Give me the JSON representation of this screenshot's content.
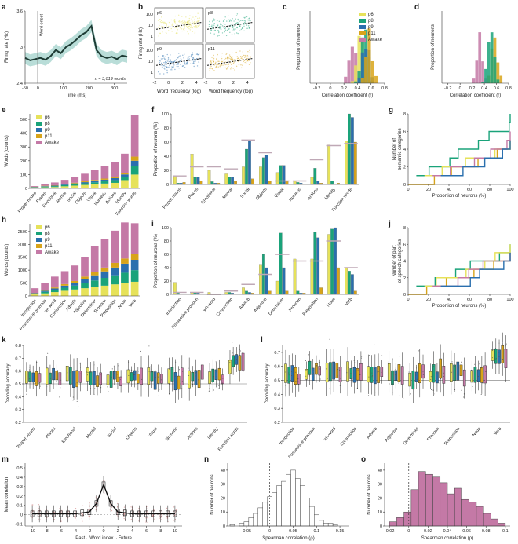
{
  "colors": {
    "p6": "#e6e25a",
    "p8": "#1aa37a",
    "p9": "#2a6fae",
    "p11": "#d8a41a",
    "awake": "#c479a6",
    "trace": "#1d3b34",
    "band": "#a8d4ce"
  },
  "chart_data": [
    {
      "id": "a",
      "type": "line",
      "panel_label": "a",
      "ylabel": "Firing rate (Hz)",
      "xlabel": "Time (ms)",
      "xlim": [
        -50,
        350
      ],
      "ylim": [
        2.4,
        3.6
      ],
      "xticks": [
        -50,
        0,
        100,
        200,
        300
      ],
      "yticks": [
        2.4,
        3.0,
        3.6
      ],
      "annotations": {
        "onset": "Word onset",
        "n": "n = 3,019 words"
      },
      "x": [
        -50,
        -30,
        -10,
        10,
        30,
        50,
        70,
        90,
        110,
        130,
        150,
        170,
        190,
        210,
        230,
        250,
        270,
        290,
        310,
        330,
        350
      ],
      "y": [
        2.82,
        2.78,
        2.8,
        2.82,
        2.79,
        2.85,
        2.95,
        2.9,
        3.0,
        3.05,
        3.12,
        3.2,
        3.25,
        3.35,
        2.95,
        2.85,
        2.82,
        2.84,
        2.8,
        2.86,
        2.84
      ]
    },
    {
      "id": "b",
      "type": "scatter",
      "panel_label": "b",
      "ylabel": "Firing rate (Hz)",
      "xlabel": "Word frequency (log)",
      "subplots": [
        "p6",
        "p8",
        "p9",
        "p11"
      ],
      "xticks": [
        -2,
        0,
        2,
        4
      ],
      "yticks_labels": [
        "1",
        "10",
        "100"
      ]
    },
    {
      "id": "c",
      "type": "bar",
      "panel_label": "c",
      "ylabel": "Proportion of neurons",
      "xlabel": "Correlation coefficient (r)",
      "xticks": [
        -0.2,
        0,
        0.2,
        0.4,
        0.6,
        0.8
      ],
      "legend": [
        "p6",
        "p8",
        "p9",
        "p11",
        "Awake"
      ]
    },
    {
      "id": "d",
      "type": "bar",
      "panel_label": "d",
      "ylabel": "Proportion of neurons",
      "xlabel": "Correlation coefficient (r)",
      "xticks": [
        -0.2,
        0,
        0.2,
        0.4,
        0.6,
        0.8
      ]
    },
    {
      "id": "e",
      "type": "bar",
      "panel_label": "e",
      "ylabel": "Words (counts)",
      "yticks": [
        0,
        100,
        200,
        300,
        400,
        500
      ],
      "categories": [
        "Proper nouns",
        "Places",
        "Emotional",
        "Mental",
        "Social",
        "Objects",
        "Visual",
        "Numeric",
        "Actions",
        "Identity",
        "Function words"
      ],
      "legend": [
        "p6",
        "p8",
        "p9",
        "p11",
        "Awake"
      ],
      "series": [
        {
          "name": "p6",
          "values": [
            5,
            8,
            10,
            15,
            20,
            25,
            30,
            35,
            40,
            60,
            100
          ]
        },
        {
          "name": "p8",
          "values": [
            3,
            5,
            6,
            8,
            10,
            12,
            14,
            16,
            20,
            25,
            60
          ]
        },
        {
          "name": "p9",
          "values": [
            2,
            3,
            4,
            5,
            6,
            8,
            10,
            12,
            14,
            16,
            40
          ]
        },
        {
          "name": "p11",
          "values": [
            2,
            3,
            3,
            4,
            5,
            6,
            7,
            8,
            9,
            10,
            30
          ]
        },
        {
          "name": "Awake",
          "values": [
            5,
            12,
            20,
            30,
            40,
            55,
            70,
            90,
            110,
            140,
            300
          ]
        }
      ]
    },
    {
      "id": "f",
      "type": "bar",
      "panel_label": "f",
      "ylabel": "Proportion of neurons (%)",
      "yticks": [
        0,
        20,
        40,
        60,
        80,
        100
      ],
      "categories": [
        "Proper nouns",
        "Places",
        "Emotional",
        "Mental",
        "Social",
        "Objects",
        "Visual",
        "Numeric",
        "Actions",
        "Identity",
        "Function words"
      ],
      "series": [
        {
          "name": "p6",
          "values": [
            12,
            43,
            20,
            15,
            25,
            25,
            17,
            5,
            10,
            56,
            62
          ]
        },
        {
          "name": "p8",
          "values": [
            2,
            10,
            4,
            10,
            50,
            38,
            27,
            3,
            23,
            5,
            100
          ]
        },
        {
          "name": "p9",
          "values": [
            2,
            11,
            2,
            11,
            62,
            42,
            27,
            2,
            5,
            0,
            95
          ]
        },
        {
          "name": "p11",
          "values": [
            3,
            5,
            2,
            5,
            8,
            5,
            5,
            0,
            2,
            2,
            60
          ]
        }
      ],
      "awake": [
        12,
        25,
        25,
        22,
        63,
        45,
        5,
        5,
        35,
        55,
        58
      ]
    },
    {
      "id": "g",
      "type": "line",
      "panel_label": "g",
      "ylabel": "Number of semantic categories",
      "xlabel": "Proportion of neurons (%)",
      "xticks": [
        0,
        20,
        40,
        60,
        80,
        100
      ],
      "yticks": [
        0,
        2,
        4,
        6,
        8
      ]
    },
    {
      "id": "h",
      "type": "bar",
      "panel_label": "h",
      "ylabel": "Words (counts)",
      "yticks": [
        0,
        500,
        1000,
        1500,
        2000,
        2500
      ],
      "categories": [
        "Interjection",
        "Possessive pronoun",
        "wh-word",
        "Conjunction",
        "Adverb",
        "Adjective",
        "Determiner",
        "Pronoun",
        "Preposition",
        "Noun",
        "Verb"
      ],
      "legend": [
        "p6",
        "p8",
        "p9",
        "p11",
        "Awake"
      ],
      "series": [
        {
          "name": "p6",
          "values": [
            60,
            100,
            150,
            200,
            250,
            300,
            350,
            400,
            450,
            500,
            550
          ]
        },
        {
          "name": "p8",
          "values": [
            30,
            60,
            80,
            120,
            150,
            200,
            250,
            300,
            350,
            400,
            450
          ]
        },
        {
          "name": "p9",
          "values": [
            20,
            40,
            60,
            80,
            100,
            150,
            200,
            250,
            300,
            350,
            400
          ]
        },
        {
          "name": "p11",
          "values": [
            10,
            30,
            40,
            60,
            80,
            100,
            120,
            150,
            180,
            200,
            220
          ]
        },
        {
          "name": "Awake",
          "values": [
            180,
            270,
            420,
            500,
            600,
            750,
            1000,
            1100,
            1250,
            1400,
            1200
          ]
        }
      ]
    },
    {
      "id": "i",
      "type": "bar",
      "panel_label": "i",
      "ylabel": "Proportion of neurons (%)",
      "yticks": [
        0,
        20,
        40,
        60,
        80,
        100
      ],
      "categories": [
        "Interjection",
        "Possessive pronoun",
        "wh-word",
        "Conjunction",
        "Adverb",
        "Adjective",
        "Determiner",
        "Pronoun",
        "Preposition",
        "Noun",
        "Verb"
      ],
      "series": [
        {
          "name": "p6",
          "values": [
            18,
            3,
            3,
            3,
            10,
            45,
            20,
            53,
            53,
            90,
            40
          ]
        },
        {
          "name": "p8",
          "values": [
            2,
            3,
            0,
            3,
            5,
            60,
            92,
            5,
            93,
            98,
            35
          ]
        },
        {
          "name": "p9",
          "values": [
            0,
            2,
            0,
            2,
            3,
            40,
            40,
            2,
            85,
            100,
            30
          ]
        },
        {
          "name": "p11",
          "values": [
            0,
            0,
            0,
            0,
            2,
            5,
            5,
            2,
            10,
            40,
            5
          ]
        }
      ],
      "awake": [
        3,
        3,
        0,
        5,
        15,
        30,
        60,
        50,
        50,
        80,
        40
      ]
    },
    {
      "id": "j",
      "type": "line",
      "panel_label": "j",
      "ylabel": "Number of part of speech categories",
      "xlabel": "Proportion of neurons (%)",
      "xticks": [
        0,
        20,
        40,
        60,
        80,
        100
      ],
      "yticks": [
        0,
        2,
        4,
        6,
        8
      ]
    },
    {
      "id": "k",
      "type": "box",
      "panel_label": "k",
      "ylabel": "Decoding accuracy",
      "yticks": [
        0.2,
        0.3,
        0.4,
        0.5,
        0.6,
        0.7,
        0.8
      ],
      "chance": 0.5,
      "categories": [
        "Proper nouns",
        "Places",
        "Emotional",
        "Mental",
        "Social",
        "Objects",
        "Visual",
        "Numeric",
        "Actions",
        "Identity",
        "Function words"
      ]
    },
    {
      "id": "l",
      "type": "box",
      "panel_label": "l",
      "ylabel": "Decoding accuracy",
      "yticks": [
        0.2,
        0.3,
        0.4,
        0.5,
        0.6,
        0.7
      ],
      "chance": 0.5,
      "categories": [
        "Interjection",
        "Possessive pronoun",
        "wh-word",
        "Conjunction",
        "Adverb",
        "Adjective",
        "Determiner",
        "Pronoun",
        "Preposition",
        "Noun",
        "Verb"
      ]
    },
    {
      "id": "m",
      "type": "line",
      "panel_label": "m",
      "ylabel": "Mean correlation",
      "xlabel": "Past←Word index→Future",
      "xticks": [
        -10,
        -8,
        -6,
        -4,
        -2,
        0,
        2,
        4,
        6,
        8,
        10
      ],
      "yticks": [
        -0.1,
        0,
        0.1,
        0.2,
        0.3,
        0.4,
        0.5
      ],
      "x": [
        -10,
        -9,
        -8,
        -7,
        -6,
        -5,
        -4,
        -3,
        -2,
        -1,
        0,
        1,
        2,
        3,
        4,
        5,
        6,
        7,
        8,
        9,
        10
      ],
      "y": [
        0.01,
        0.01,
        0.01,
        0.01,
        0.01,
        0.01,
        0.01,
        0.02,
        0.03,
        0.12,
        0.32,
        0.12,
        0.03,
        0.02,
        0.01,
        0.01,
        0.01,
        0.01,
        0.01,
        0.01,
        0.01
      ]
    },
    {
      "id": "n",
      "type": "histogram",
      "panel_label": "n",
      "ylabel": "Number of neurons",
      "xlabel": "Spearman correlation (ρ)",
      "xticks": [
        -0.05,
        0,
        0.05,
        0.1,
        0.15
      ],
      "yticks": [
        0,
        10,
        20,
        30,
        40
      ],
      "bin_start": -0.085,
      "bin_width": 0.01,
      "counts": [
        1,
        0,
        2,
        3,
        6,
        9,
        13,
        17,
        21,
        24,
        29,
        32,
        37,
        40,
        34,
        29,
        20,
        14,
        8,
        4,
        2,
        2,
        1
      ]
    },
    {
      "id": "o",
      "type": "histogram",
      "panel_label": "o",
      "ylabel": "Number of neurons",
      "xlabel": "Spearman correlation (ρ)",
      "xticks": [
        -0.02,
        0,
        0.02,
        0.04,
        0.06,
        0.08,
        0.1
      ],
      "yticks": [
        0,
        10,
        20,
        30,
        40
      ],
      "bin_start": -0.02,
      "bin_width": 0.0075,
      "counts": [
        3,
        6,
        10,
        26,
        39,
        37,
        35,
        31,
        23,
        27,
        19,
        17,
        14,
        9,
        5,
        2
      ]
    }
  ]
}
